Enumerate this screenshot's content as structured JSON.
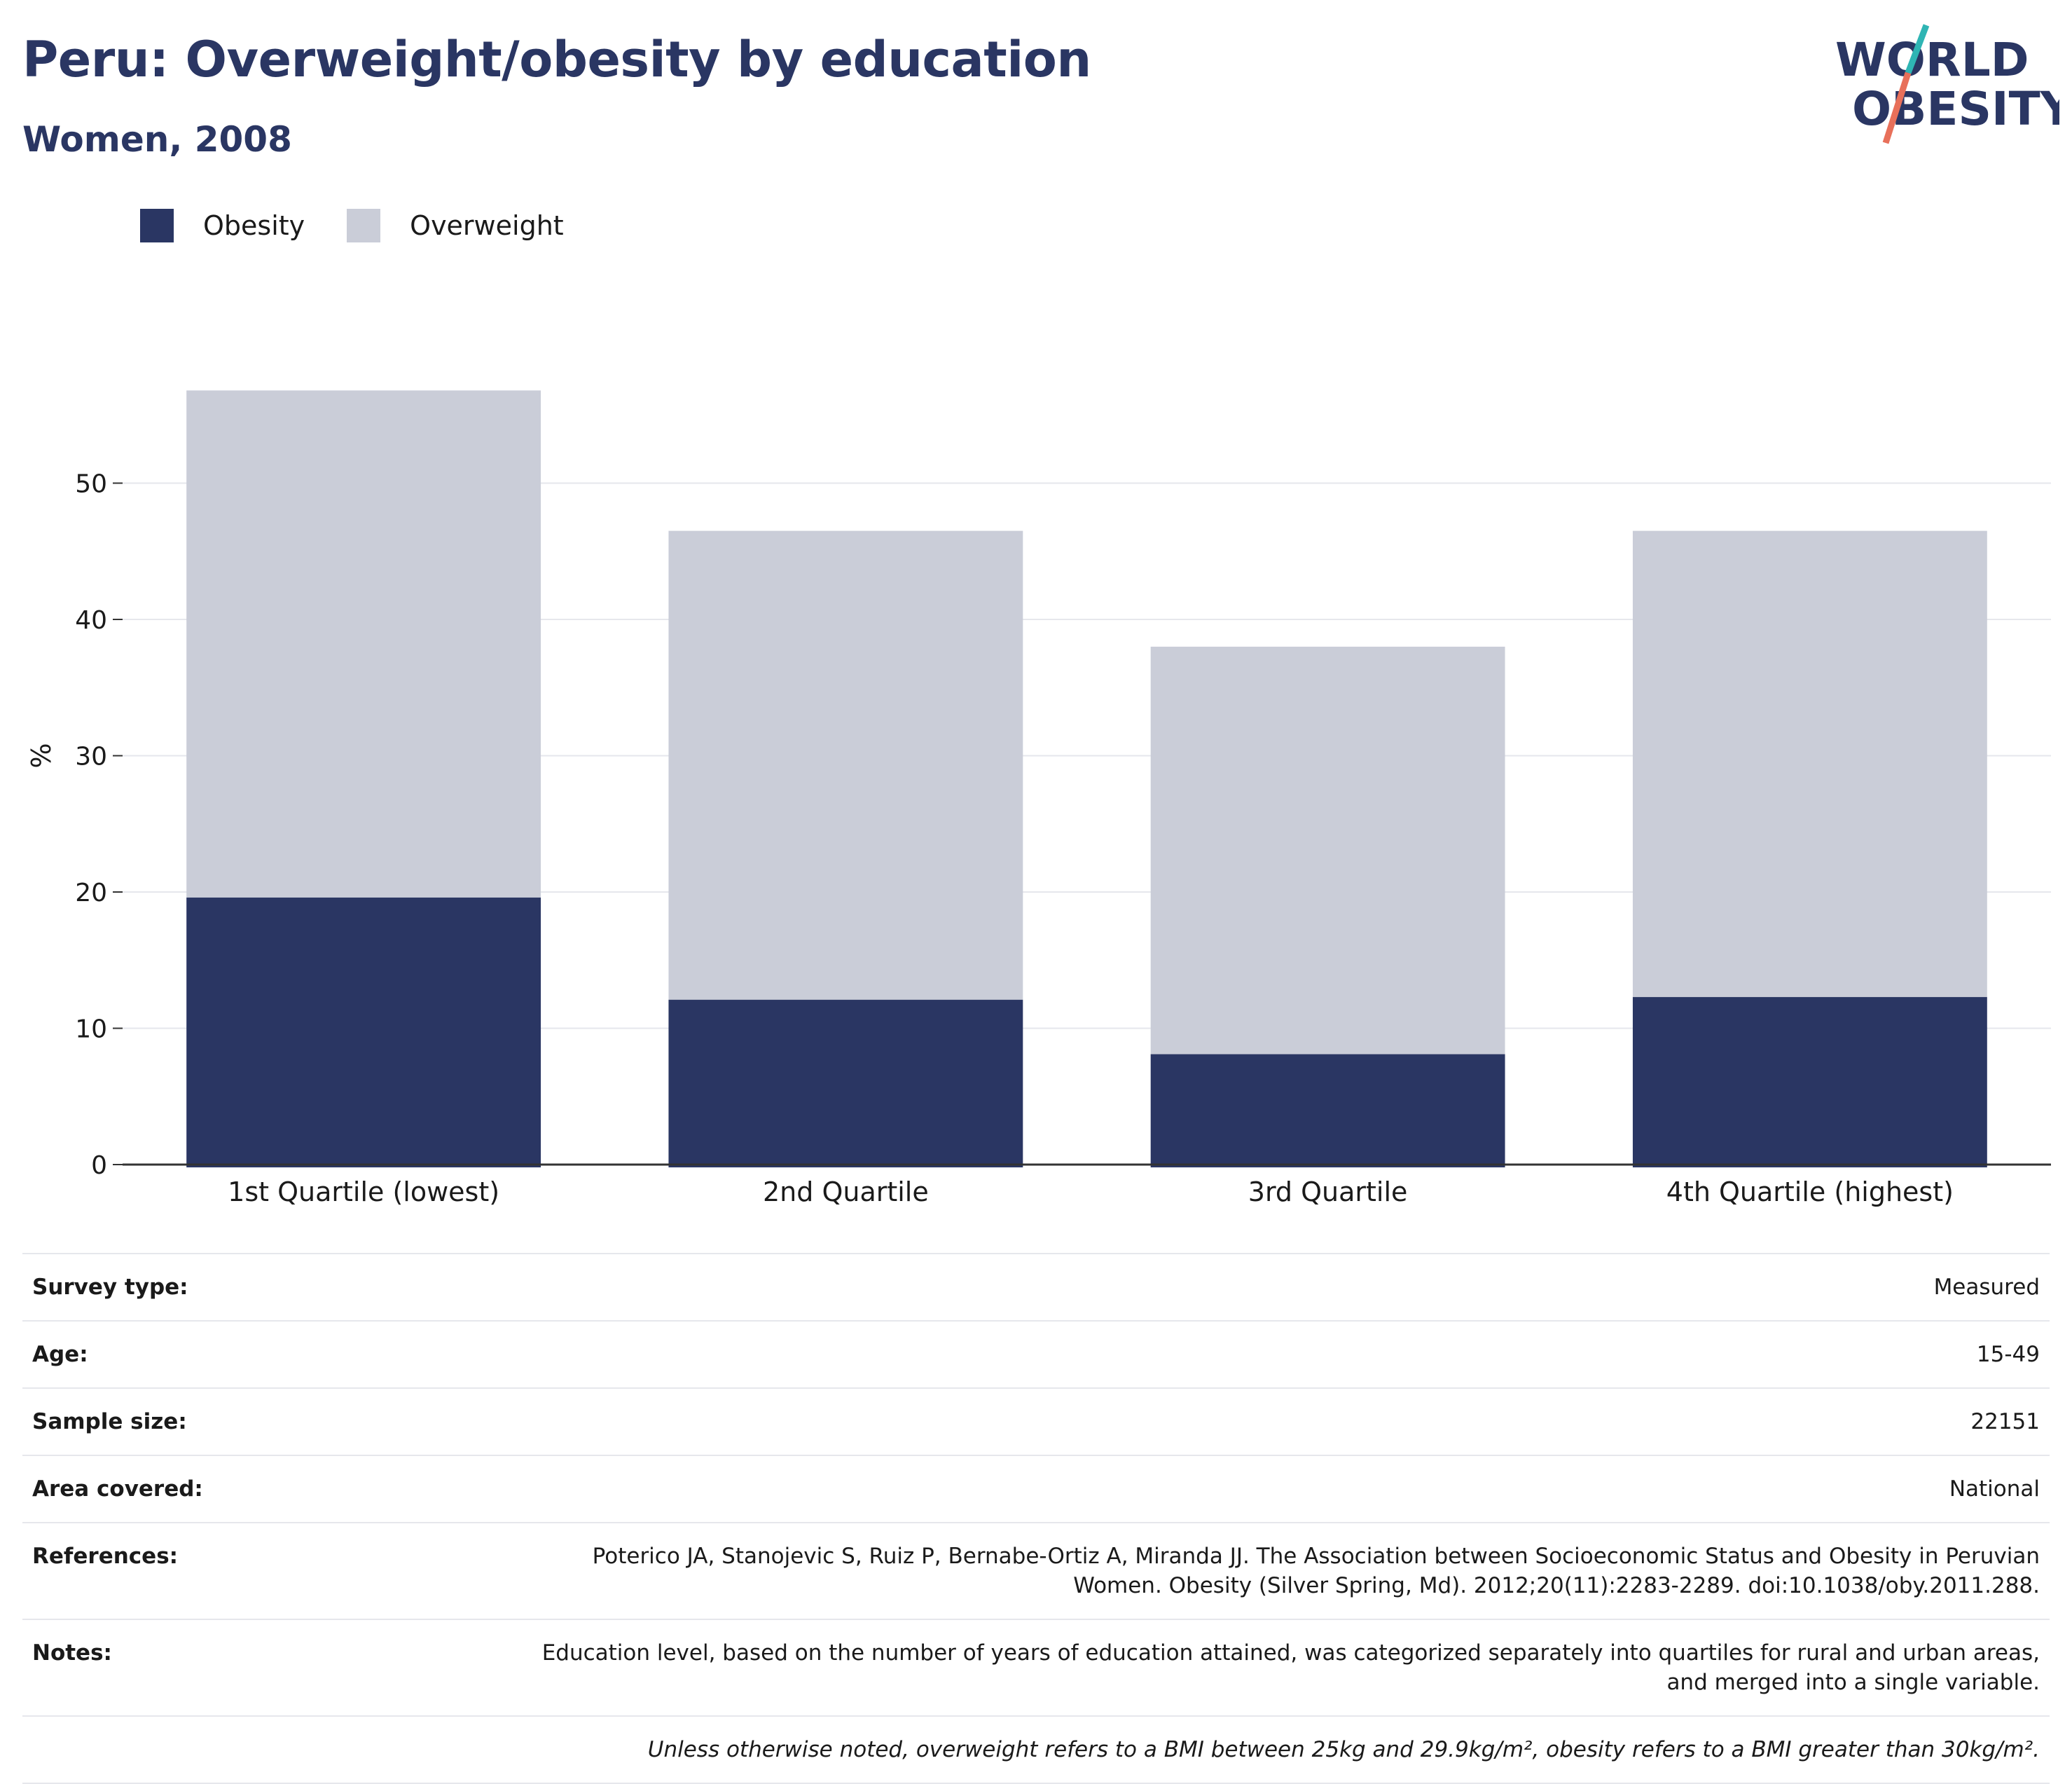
{
  "title": "Peru: Overweight/obesity by education",
  "subtitle": "Women, 2008",
  "logo": {
    "line1": "WORLD",
    "line2": "OBESITY",
    "colors": {
      "text": "#2a3663",
      "teal": "#2fb5b4",
      "coral": "#e8705a"
    }
  },
  "colors": {
    "obesity": "#2a3663",
    "overweight": "#cacdd8",
    "grid": "#e6e7ec",
    "axis": "#333333"
  },
  "legend": [
    {
      "label": "Obesity",
      "color": "#2a3663"
    },
    {
      "label": "Overweight",
      "color": "#cacdd8"
    }
  ],
  "chart_data": {
    "type": "bar",
    "stacked": true,
    "categories": [
      "1st Quartile (lowest)",
      "2nd Quartile",
      "3rd Quartile",
      "4th Quartile (highest)"
    ],
    "series": [
      {
        "name": "Obesity",
        "values": [
          19.6,
          12.1,
          8.1,
          12.3
        ]
      },
      {
        "name": "Overweight",
        "values": [
          37.2,
          34.4,
          29.9,
          34.2
        ]
      }
    ],
    "ylabel": "%",
    "ylim": [
      0,
      60
    ],
    "yticks": [
      0,
      10,
      20,
      30,
      40,
      50
    ],
    "grid": true,
    "legend_position": "top-left"
  },
  "info": {
    "rows": [
      {
        "label": "Survey type:",
        "value": "Measured"
      },
      {
        "label": "Age:",
        "value": "15-49"
      },
      {
        "label": "Sample size:",
        "value": "22151"
      },
      {
        "label": "Area covered:",
        "value": "National"
      },
      {
        "label": "References:",
        "value": "Poterico JA, Stanojevic S, Ruiz P, Bernabe-Ortiz A, Miranda JJ. The Association between Socioeconomic Status and Obesity in Peruvian Women. Obesity (Silver Spring, Md). 2012;20(11):2283-2289. doi:10.1038/oby.2011.288."
      },
      {
        "label": "Notes:",
        "value": "Education level, based on the number of years of education attained, was categorized separately into quartiles for rural and urban areas, and merged into a single variable."
      }
    ],
    "footnote": "Unless otherwise noted, overweight refers to a BMI between 25kg and 29.9kg/m², obesity refers to a BMI greater than 30kg/m²."
  }
}
